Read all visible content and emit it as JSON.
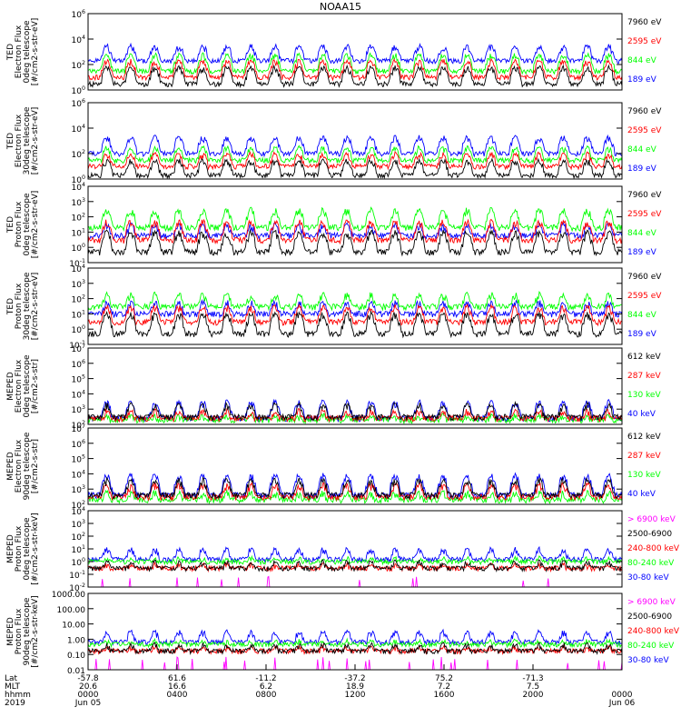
{
  "title": "NOAA15",
  "colors": {
    "black": "#000000",
    "blue": "#0000ff",
    "green": "#00ff00",
    "red": "#ff0000",
    "magenta": "#ff00ff"
  },
  "chart_data": [
    {
      "type": "line",
      "ylabel": [
        "TED",
        "Electron Flux",
        "0deg telescope",
        "[#/cm2-s-str-eV]"
      ],
      "yscale": "log",
      "ylim": [
        1,
        1000000
      ],
      "yticks": [
        "10^0",
        "10^2",
        "10^4",
        "10^6"
      ],
      "legend": [
        {
          "name": "7960 eV",
          "color": "#000000"
        },
        {
          "name": "2595 eV",
          "color": "#ff0000"
        },
        {
          "name": "844 eV",
          "color": "#00ff00"
        },
        {
          "name": "189 eV",
          "color": "#0000ff"
        }
      ],
      "levels": {
        "#0000ff": [
          200,
          3000
        ],
        "#00ff00": [
          30,
          600
        ],
        "#ff0000": [
          10,
          200
        ],
        "#000000": [
          3,
          60
        ]
      }
    },
    {
      "type": "line",
      "ylabel": [
        "TED",
        "Electron Flux",
        "30deg telescope",
        "[#/cm2-s-str-eV]"
      ],
      "yscale": "log",
      "ylim": [
        1,
        1000000
      ],
      "yticks": [
        "10^0",
        "10^2",
        "10^4",
        "10^6"
      ],
      "legend": [
        {
          "name": "7960 eV",
          "color": "#000000"
        },
        {
          "name": "2595 eV",
          "color": "#ff0000"
        },
        {
          "name": "844 eV",
          "color": "#00ff00"
        },
        {
          "name": "189 eV",
          "color": "#0000ff"
        }
      ],
      "levels": {
        "#0000ff": [
          100,
          2000
        ],
        "#00ff00": [
          30,
          300
        ],
        "#ff0000": [
          10,
          100
        ],
        "#000000": [
          2,
          30
        ]
      }
    },
    {
      "type": "line",
      "ylabel": [
        "TED",
        "Proton Flux",
        "0deg telescope",
        "[#/cm2-s-str-eV]"
      ],
      "yscale": "log",
      "ylim": [
        0.1,
        10000
      ],
      "yticks": [
        "10^-1",
        "10^0",
        "10^1",
        "10^2",
        "10^3",
        "10^4"
      ],
      "legend": [
        {
          "name": "7960 eV",
          "color": "#000000"
        },
        {
          "name": "2595 eV",
          "color": "#ff0000"
        },
        {
          "name": "844 eV",
          "color": "#00ff00"
        },
        {
          "name": "189 eV",
          "color": "#0000ff"
        }
      ],
      "levels": {
        "#0000ff": [
          6,
          30
        ],
        "#00ff00": [
          20,
          300
        ],
        "#ff0000": [
          3,
          50
        ],
        "#000000": [
          0.5,
          10
        ]
      }
    },
    {
      "type": "line",
      "ylabel": [
        "TED",
        "Proton Flux",
        "30deg telescope",
        "[#/cm2-s-str-eV]"
      ],
      "yscale": "log",
      "ylim": [
        0.1,
        10000
      ],
      "yticks": [
        "10^-1",
        "10^0",
        "10^1",
        "10^2",
        "10^3",
        "10^4"
      ],
      "legend": [
        {
          "name": "7960 eV",
          "color": "#000000"
        },
        {
          "name": "2595 eV",
          "color": "#ff0000"
        },
        {
          "name": "844 eV",
          "color": "#00ff00"
        },
        {
          "name": "189 eV",
          "color": "#0000ff"
        }
      ],
      "levels": {
        "#0000ff": [
          10,
          60
        ],
        "#00ff00": [
          30,
          200
        ],
        "#ff0000": [
          3,
          30
        ],
        "#000000": [
          0.5,
          10
        ]
      }
    },
    {
      "type": "line",
      "ylabel": [
        "MEPED",
        "Electron Flux",
        "0deg telescope",
        "[#/cm2-s-str]"
      ],
      "yscale": "log",
      "ylim": [
        100,
        10000000
      ],
      "yticks": [
        "10^2",
        "10^3",
        "10^4",
        "10^5",
        "10^6",
        "10^7"
      ],
      "legend": [
        {
          "name": "612 keV",
          "color": "#000000"
        },
        {
          "name": "287 keV",
          "color": "#ff0000"
        },
        {
          "name": "130 keV",
          "color": "#00ff00"
        },
        {
          "name": "40 keV",
          "color": "#0000ff"
        }
      ],
      "levels": {
        "#0000ff": [
          250,
          3000
        ],
        "#00ff00": [
          200,
          400
        ],
        "#ff0000": [
          250,
          800
        ],
        "#000000": [
          300,
          2000
        ]
      }
    },
    {
      "type": "line",
      "ylabel": [
        "MEPED",
        "Electron Flux",
        "90deg telescope",
        "[#/cm2-s-str]"
      ],
      "yscale": "log",
      "ylim": [
        100,
        10000000
      ],
      "yticks": [
        "10^2",
        "10^3",
        "10^4",
        "10^5",
        "10^6",
        "10^7"
      ],
      "legend": [
        {
          "name": "612 keV",
          "color": "#000000"
        },
        {
          "name": "287 keV",
          "color": "#ff0000"
        },
        {
          "name": "130 keV",
          "color": "#00ff00"
        },
        {
          "name": "40 keV",
          "color": "#0000ff"
        }
      ],
      "levels": {
        "#0000ff": [
          400,
          8000
        ],
        "#00ff00": [
          200,
          600
        ],
        "#ff0000": [
          300,
          2000
        ],
        "#000000": [
          400,
          4000
        ]
      }
    },
    {
      "type": "line",
      "ylabel": [
        "MEPED",
        "Proton Flux",
        "0deg telescope",
        "[#/cm2-s-str-keV]"
      ],
      "yscale": "log",
      "ylim": [
        0.01,
        10000
      ],
      "yticks": [
        "10^-2",
        "10^-1",
        "10^0",
        "10^1",
        "10^2",
        "10^3",
        "10^4"
      ],
      "legend": [
        {
          "name": "> 6900 keV",
          "color": "#ff00ff"
        },
        {
          "name": "2500-6900",
          "color": "#000000"
        },
        {
          "name": "240-800 keV",
          "color": "#ff0000"
        },
        {
          "name": "80-240 keV",
          "color": "#00ff00"
        },
        {
          "name": "30-80 keV",
          "color": "#0000ff"
        }
      ],
      "levels": {
        "#0000ff": [
          1.5,
          10
        ],
        "#00ff00": [
          1,
          2
        ],
        "#ff0000": [
          0.3,
          0.6
        ],
        "#000000": [
          0.3,
          1
        ],
        "#ff00ff": [
          0.05,
          0.1
        ]
      }
    },
    {
      "type": "line",
      "ylabel": [
        "MEPED",
        "Proton Flux",
        "90deg telescope",
        "[#/cm2-s-str-keV]"
      ],
      "yscale": "log",
      "ylim": [
        0.01,
        10000
      ],
      "yticks": [
        "0.01",
        "0.10",
        "1.00",
        "10.00",
        "100.00",
        "1000.00"
      ],
      "legend": [
        {
          "name": "> 6900 keV",
          "color": "#ff00ff"
        },
        {
          "name": "2500-6900",
          "color": "#000000"
        },
        {
          "name": "240-800 keV",
          "color": "#ff0000"
        },
        {
          "name": "80-240 keV",
          "color": "#00ff00"
        },
        {
          "name": "30-80 keV",
          "color": "#0000ff"
        }
      ],
      "levels": {
        "#0000ff": [
          1.5,
          10
        ],
        "#00ff00": [
          1,
          2
        ],
        "#ff0000": [
          0.3,
          0.6
        ],
        "#000000": [
          0.3,
          1
        ],
        "#ff00ff": [
          0.05,
          0.1
        ]
      }
    }
  ],
  "xaxis": {
    "row_labels": [
      "Lat",
      "MLT",
      "hhmm",
      "2019"
    ],
    "ticks": [
      {
        "lat": "-57.8",
        "mlt": "20.6",
        "hhmm": "0000",
        "date": "Jun 05"
      },
      {
        "lat": "61.6",
        "mlt": "16.6",
        "hhmm": "0400",
        "date": ""
      },
      {
        "lat": "-11.2",
        "mlt": "6.2",
        "hhmm": "0800",
        "date": ""
      },
      {
        "lat": "-37.2",
        "mlt": "18.9",
        "hhmm": "1200",
        "date": ""
      },
      {
        "lat": "75.2",
        "mlt": "7.2",
        "hhmm": "1600",
        "date": ""
      },
      {
        "lat": "-71.3",
        "mlt": "7.5",
        "hhmm": "2000",
        "date": ""
      },
      {
        "lat": "",
        "mlt": "",
        "hhmm": "0000",
        "date": "Jun 06"
      }
    ]
  }
}
